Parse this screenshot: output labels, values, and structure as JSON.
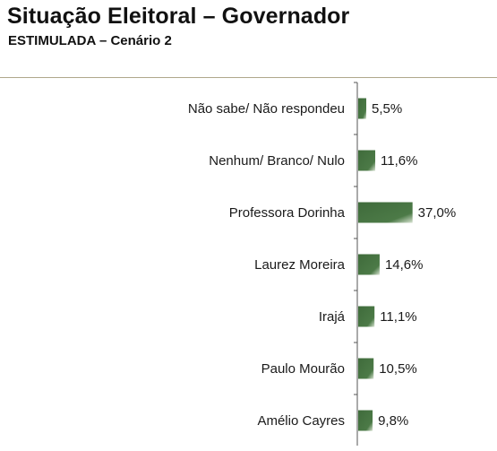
{
  "header": {
    "title": "Situação Eleitoral – Governador",
    "subtitle": "ESTIMULADA – Cenário 2"
  },
  "colors": {
    "bar_dark": "#3f6b3b",
    "bar_light": "#d8e3d2",
    "axis": "#555555",
    "divider": "#b0a88c"
  },
  "chart_data": {
    "type": "bar",
    "orientation": "horizontal",
    "title": "Situação Eleitoral – Governador",
    "subtitle": "ESTIMULADA – Cenário 2",
    "categories": [
      "Não sabe/ Não respondeu",
      "Nenhum/ Branco/ Nulo",
      "Professora Dorinha",
      "Laurez Moreira",
      "Irajá",
      "Paulo Mourão",
      "Amélio Cayres"
    ],
    "values": [
      5.5,
      11.6,
      37.0,
      14.6,
      11.1,
      10.5,
      9.8
    ],
    "value_labels": [
      "5,5%",
      "11,6%",
      "37,0%",
      "14,6%",
      "11,1%",
      "10,5%",
      "9,8%"
    ],
    "unit": "%",
    "xlim": [
      0,
      100
    ],
    "grid": false,
    "legend": "none"
  }
}
